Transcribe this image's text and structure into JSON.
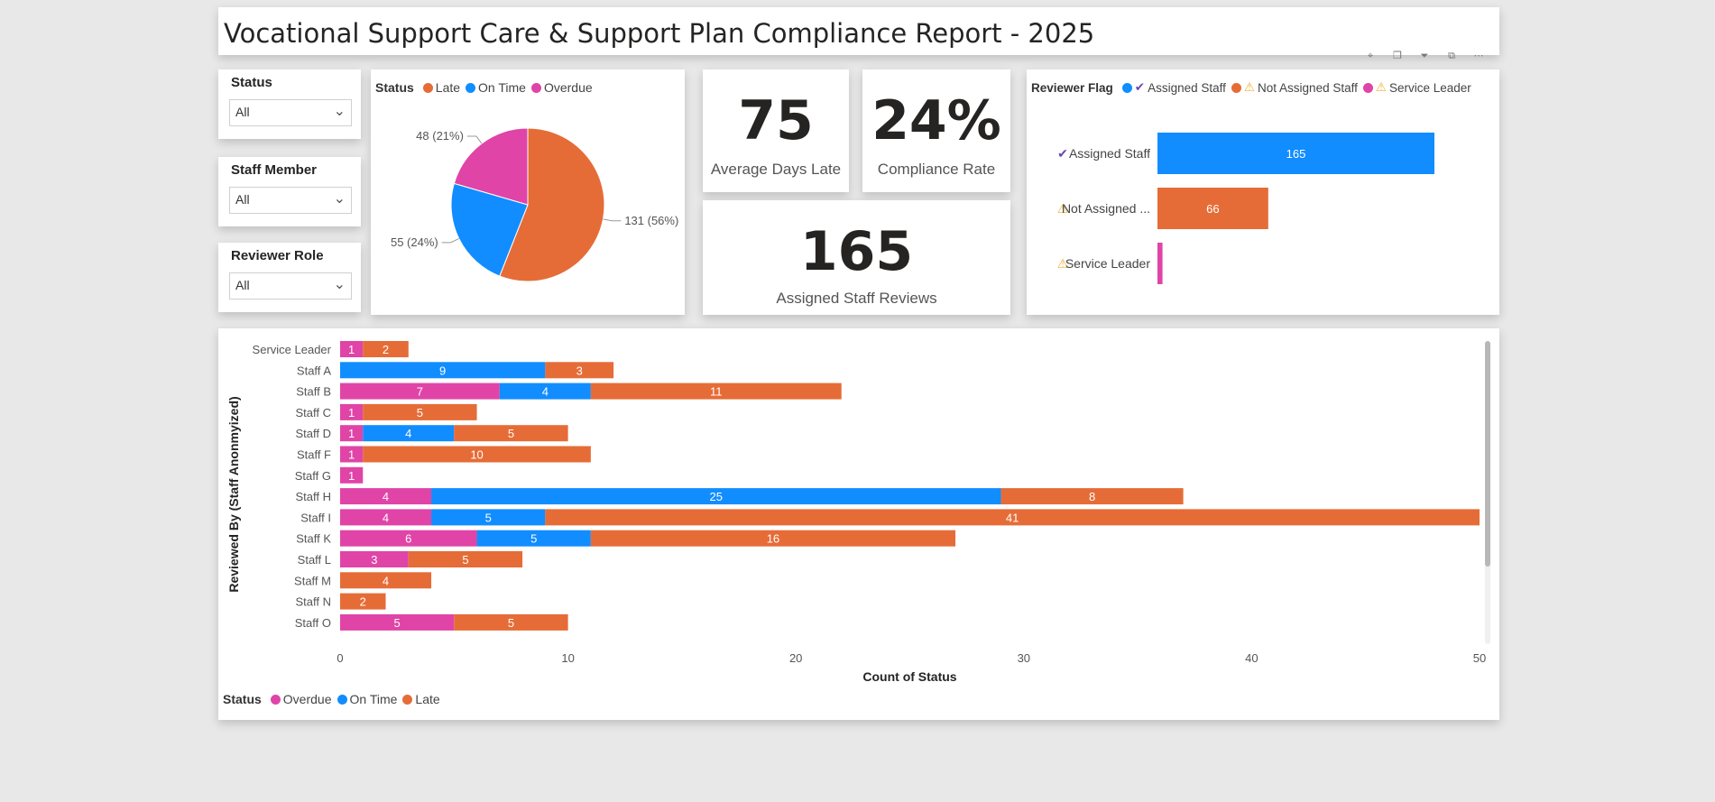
{
  "title": "Vocational Support Care & Support Plan Compliance Report - 2025",
  "visual_header_icons": [
    "pin-icon",
    "copy-icon",
    "filter-icon",
    "focus-icon",
    "more-icon"
  ],
  "slicers": [
    {
      "label": "Status",
      "value": "All"
    },
    {
      "label": "Staff Member",
      "value": "All"
    },
    {
      "label": "Reviewer Role",
      "value": "All"
    }
  ],
  "colors": {
    "late": "#E66C37",
    "on_time": "#118DFF",
    "overdue": "#E044A7",
    "check": "#6B47B3",
    "warn": "#F2B134"
  },
  "kpis": {
    "avg_days_late": {
      "value": "75",
      "caption": "Average Days Late"
    },
    "compliance_rate": {
      "value": "24%",
      "caption": "Compliance Rate"
    },
    "assigned_reviews": {
      "value": "165",
      "caption": "Assigned Staff Reviews"
    }
  },
  "pie_legend": {
    "title": "Status",
    "items": [
      "Late",
      "On Time",
      "Overdue"
    ]
  },
  "flag_legend": {
    "title": "Reviewer Flag",
    "items": [
      "Assigned Staff",
      "Not Assigned Staff",
      "Service Leader"
    ]
  },
  "bar_legend": {
    "title": "Status",
    "items": [
      "Overdue",
      "On Time",
      "Late"
    ]
  },
  "chart_data": [
    {
      "type": "pie",
      "legend_title": "Status",
      "slices": [
        {
          "name": "Late",
          "value": 131,
          "label": "131 (56%)",
          "color": "#E66C37"
        },
        {
          "name": "On Time",
          "value": 55,
          "label": "55 (24%)",
          "color": "#118DFF"
        },
        {
          "name": "Overdue",
          "value": 48,
          "label": "48 (21%)",
          "color": "#E044A7"
        }
      ]
    },
    {
      "type": "bar",
      "orientation": "horizontal",
      "legend_title": "Reviewer Flag",
      "categories": [
        "Assigned Staff",
        "Not Assigned ...",
        "Service Leader"
      ],
      "values": [
        165,
        66,
        3
      ],
      "data_labels": [
        "165",
        "66",
        ""
      ],
      "icons": [
        "check-icon",
        "warning-icon",
        "warning-icon"
      ],
      "colors": [
        "#118DFF",
        "#E66C37",
        "#E044A7"
      ]
    },
    {
      "type": "bar",
      "orientation": "horizontal",
      "stacked": true,
      "xlabel": "Count of Status",
      "ylabel": "Reviewed By (Staff Anonmyized)",
      "xlim": [
        0,
        50
      ],
      "xticks": [
        "0",
        "10",
        "20",
        "30",
        "40",
        "50"
      ],
      "legend_title": "Status",
      "legend_position": "bottom-left",
      "categories": [
        "Service Leader",
        "Staff A",
        "Staff B",
        "Staff C",
        "Staff D",
        "Staff F",
        "Staff G",
        "Staff H",
        "Staff I",
        "Staff K",
        "Staff L",
        "Staff M",
        "Staff N",
        "Staff O"
      ],
      "series": [
        {
          "name": "Overdue",
          "color": "#E044A7",
          "values": [
            1,
            0,
            7,
            1,
            1,
            1,
            1,
            4,
            4,
            6,
            3,
            0,
            0,
            5
          ]
        },
        {
          "name": "On Time",
          "color": "#118DFF",
          "values": [
            0,
            9,
            4,
            0,
            4,
            0,
            0,
            25,
            5,
            5,
            0,
            0,
            0,
            0
          ]
        },
        {
          "name": "Late",
          "color": "#E66C37",
          "values": [
            2,
            3,
            11,
            5,
            5,
            10,
            0,
            8,
            41,
            16,
            5,
            4,
            2,
            5
          ]
        }
      ]
    }
  ]
}
